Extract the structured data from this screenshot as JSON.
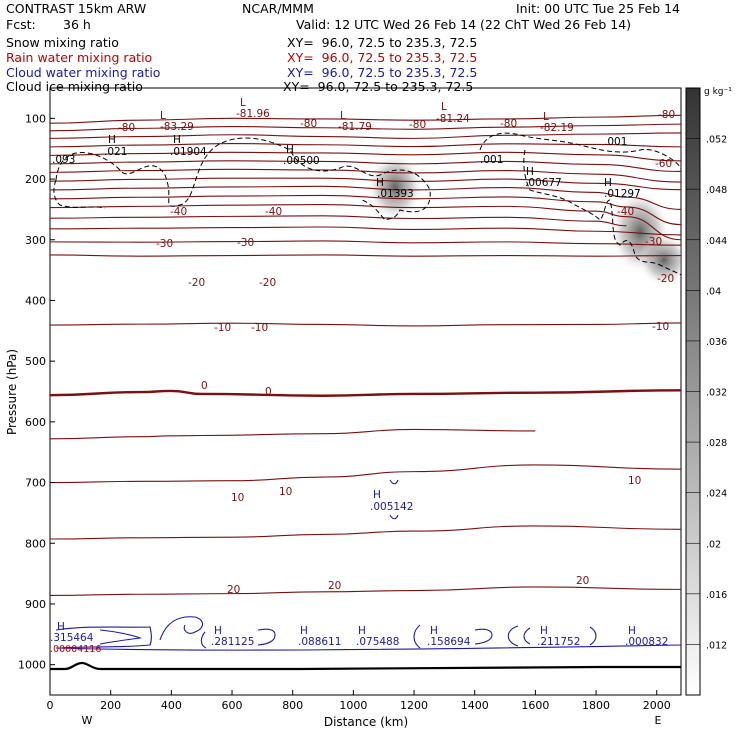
{
  "header": {
    "left": {
      "title": "CONTRAST 15km ARW",
      "fcst_label": "Fcst:",
      "fcst_value": "36 h",
      "snow": "Snow mixing ratio",
      "rain": "Rain water mixing ratio",
      "cloud_water": "Cloud water mixing ratio",
      "cloud_ice": "Cloud ice mixing ratio"
    },
    "center": {
      "org": "NCAR/MMM"
    },
    "right": {
      "init": "Init: 00 UTC Tue 25 Feb 14",
      "valid": "Valid: 12 UTC Wed 26 Feb 14 (22 ChT Wed 26 Feb 14)",
      "xy_snow": "XY=  96.0, 72.5 to 235.3, 72.5",
      "xy_rain": "XY=  96.0, 72.5 to 235.3, 72.5",
      "xy_cloud": "XY=  96.0, 72.5 to 235.3, 72.5",
      "xy_ice": "XY=  96.0, 72.5 to 235.3, 72.5"
    }
  },
  "colors": {
    "temperature": "#7a1010",
    "cloud_water": "#1a1aa6",
    "rain": "#c00000",
    "ground": "#000000"
  },
  "chart_data": {
    "type": "cross-section",
    "xlabel": "Distance (km)",
    "ylabel": "Pressure (hPa)",
    "xlim": [
      0,
      2080
    ],
    "ylim": [
      1050,
      50
    ],
    "x_ticks": [
      0,
      200,
      400,
      600,
      800,
      1000,
      1200,
      1400,
      1600,
      1800,
      2000
    ],
    "y_ticks": [
      100,
      200,
      300,
      400,
      500,
      600,
      700,
      800,
      900,
      1000
    ],
    "end_labels": {
      "west": "W",
      "east": "E"
    },
    "colorbar": {
      "unit": "g kg⁻¹",
      "ticks": [
        ".012",
        ".016",
        ".02",
        ".024",
        ".028",
        ".032",
        ".036",
        ".04",
        ".044",
        ".048",
        ".052"
      ],
      "min": 0.008,
      "max": 0.056
    },
    "temperature_contours": [
      {
        "value": -80,
        "points": [
          [
            0,
            108
          ],
          [
            300,
            103
          ],
          [
            600,
            100
          ],
          [
            900,
            101
          ],
          [
            1200,
            103
          ],
          [
            1500,
            101
          ],
          [
            1800,
            98
          ],
          [
            2080,
            95
          ]
        ]
      },
      {
        "value": -70,
        "points": [
          [
            0,
            133
          ],
          [
            300,
            130
          ],
          [
            600,
            127
          ],
          [
            900,
            130
          ],
          [
            1200,
            133
          ],
          [
            1500,
            128
          ],
          [
            1800,
            126
          ],
          [
            2080,
            124
          ]
        ]
      },
      {
        "value": -60,
        "points": [
          [
            0,
            161
          ],
          [
            300,
            158
          ],
          [
            600,
            156
          ],
          [
            900,
            157
          ],
          [
            1200,
            160
          ],
          [
            1500,
            156
          ],
          [
            1800,
            160
          ],
          [
            2080,
            170
          ]
        ]
      },
      {
        "value": -50,
        "points": [
          [
            0,
            189
          ],
          [
            300,
            186
          ],
          [
            600,
            184
          ],
          [
            900,
            185
          ],
          [
            1200,
            190
          ],
          [
            1500,
            186
          ],
          [
            1800,
            192
          ],
          [
            2080,
            205
          ]
        ]
      },
      {
        "value": -40,
        "points": [
          [
            0,
            218
          ],
          [
            300,
            215
          ],
          [
            600,
            213
          ],
          [
            900,
            212
          ],
          [
            1200,
            218
          ],
          [
            1500,
            214
          ],
          [
            1800,
            222
          ],
          [
            1900,
            230
          ],
          [
            2080,
            250
          ]
        ]
      },
      {
        "value": -30,
        "points": [
          [
            0,
            247
          ],
          [
            300,
            245
          ],
          [
            600,
            243
          ],
          [
            900,
            242
          ],
          [
            1200,
            247
          ],
          [
            1500,
            245
          ],
          [
            1800,
            253
          ],
          [
            1900,
            262
          ],
          [
            2080,
            300
          ]
        ]
      },
      {
        "value": -20,
        "points": [
          [
            0,
            282
          ],
          [
            300,
            281
          ],
          [
            600,
            280
          ],
          [
            900,
            279
          ],
          [
            1200,
            283
          ],
          [
            1500,
            281
          ],
          [
            1800,
            286
          ],
          [
            2080,
            292
          ]
        ]
      },
      {
        "value": -10,
        "points": [
          [
            0,
            325
          ],
          [
            300,
            327
          ],
          [
            600,
            326
          ],
          [
            900,
            325
          ],
          [
            1200,
            327
          ],
          [
            1500,
            326
          ],
          [
            1800,
            327
          ],
          [
            2080,
            326
          ]
        ]
      },
      {
        "value": 0,
        "points": [
          [
            0,
            556
          ],
          [
            300,
            551
          ],
          [
            400,
            549
          ],
          [
            500,
            554
          ],
          [
            900,
            557
          ],
          [
            1200,
            554
          ],
          [
            1600,
            552
          ],
          [
            2080,
            548
          ]
        ]
      },
      {
        "value": 10,
        "points": [
          [
            0,
            700
          ],
          [
            300,
            698
          ],
          [
            600,
            697
          ],
          [
            900,
            691
          ],
          [
            1200,
            682
          ],
          [
            1600,
            671
          ],
          [
            2080,
            678
          ]
        ]
      },
      {
        "value": 20,
        "points": [
          [
            0,
            886
          ],
          [
            300,
            884
          ],
          [
            600,
            883
          ],
          [
            900,
            880
          ],
          [
            1200,
            878
          ],
          [
            1600,
            872
          ],
          [
            2080,
            876
          ]
        ]
      }
    ],
    "temperature_contour_labels": [
      "-81.96",
      "-83.29",
      "-81.79",
      "-81.24",
      "-82.19"
    ],
    "contour_level_labels": [
      "-80",
      "-80",
      "-80",
      "-80",
      "-80",
      "-60",
      "-40",
      "-40",
      "-40",
      "-30",
      "-30",
      "-30",
      "-20",
      "-20",
      "-20",
      "-10",
      "-10",
      "-10",
      "0",
      "0",
      "10",
      "10",
      "10",
      "20",
      "20",
      "20"
    ],
    "cloud_ice_maxima": [
      ".093",
      ".021",
      ".01904",
      ".00500",
      ".01393",
      ".001",
      ".00677",
      ".01297",
      ".001"
    ],
    "cloud_water_maxima": [
      ".315464",
      ".00004116",
      ".281125",
      ".088611",
      ".075488",
      ".158694",
      ".211752",
      ".000832",
      ".005142"
    ],
    "high_marker": "H",
    "low_marker": "L"
  }
}
